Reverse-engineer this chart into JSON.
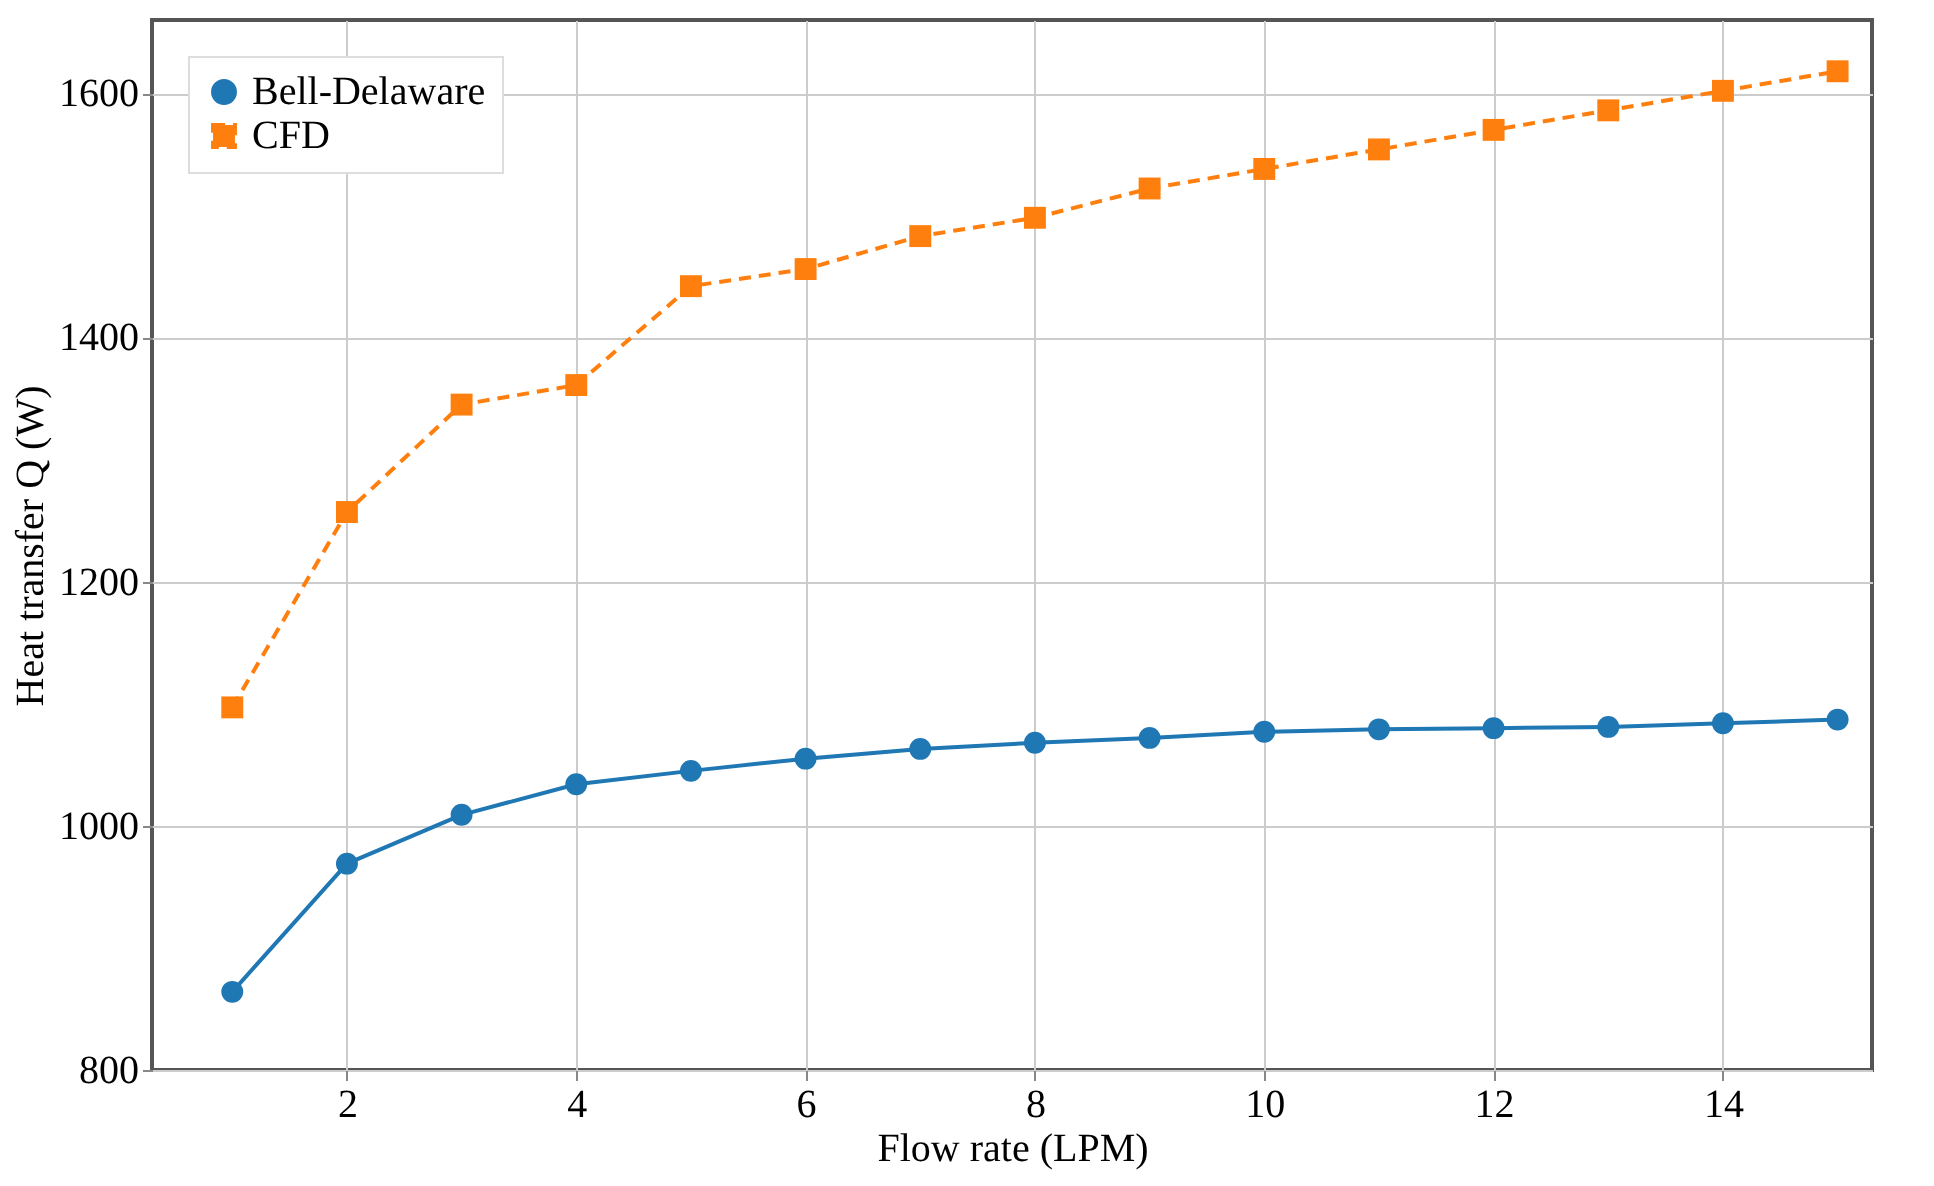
{
  "chart_data": {
    "type": "line",
    "xlabel": "Flow rate (LPM)",
    "ylabel": "Heat transfer Q (W)",
    "x": [
      1,
      2,
      3,
      4,
      5,
      6,
      7,
      8,
      9,
      10,
      11,
      12,
      13,
      14,
      15
    ],
    "series": [
      {
        "name": "Bell-Delaware",
        "color": "#1f77b4",
        "marker": "circle",
        "line_style": "solid",
        "values": [
          864,
          969,
          1009,
          1034,
          1045,
          1055,
          1063,
          1068,
          1072,
          1077,
          1079,
          1080,
          1081,
          1084,
          1087
        ]
      },
      {
        "name": "CFD",
        "color": "#ff7f0e",
        "marker": "square",
        "line_style": "dashed",
        "values": [
          1097,
          1257,
          1345,
          1361,
          1442,
          1456,
          1483,
          1498,
          1522,
          1538,
          1554,
          1570,
          1586,
          1602,
          1618
        ]
      }
    ],
    "xlim": [
      0.3,
      15.3
    ],
    "xticks": [
      2,
      4,
      6,
      8,
      10,
      12,
      14
    ],
    "ylim": [
      800,
      1660
    ],
    "yticks": [
      800,
      1000,
      1200,
      1400,
      1600
    ],
    "grid": true,
    "legend": "top left"
  }
}
